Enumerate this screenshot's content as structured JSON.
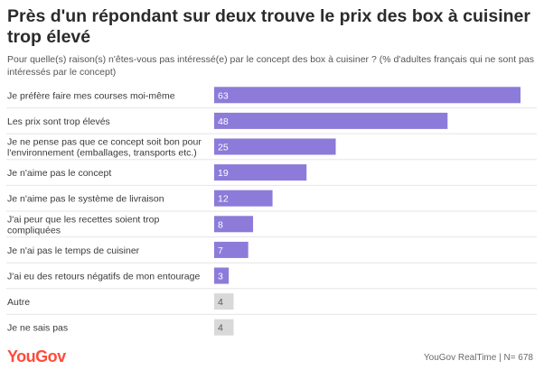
{
  "header": {
    "title": "Près d'un répondant sur deux trouve le prix des box à cuisiner trop élevé",
    "subtitle": "Pour quelle(s) raison(s) n'êtes-vous pas intéressé(e) par le concept des box à cuisiner ? (% d'adultes français qui ne sont pas intéressés par le concept)"
  },
  "footer": {
    "logo": "YouGov",
    "source": "YouGov RealTime | N= 678"
  },
  "colors": {
    "primary_bar": "#8c7bd9",
    "muted_bar": "#d9d9d9",
    "divider": "#e6e6e6"
  },
  "chart_data": {
    "type": "bar",
    "orientation": "horizontal",
    "categories": [
      [
        "Je préfère faire mes courses moi-même"
      ],
      [
        "Les prix sont trop élevés"
      ],
      [
        "Je ne pense pas que ce concept soit bon pour",
        "l'environnement (emballages, transports etc.)"
      ],
      [
        "Je n'aime pas le concept"
      ],
      [
        "Je n'aime pas le système de livraison"
      ],
      [
        "J'ai peur que les recettes soient trop",
        "compliquées"
      ],
      [
        "Je n'ai pas le temps de cuisiner"
      ],
      [
        "J'ai eu des retours négatifs de mon entourage"
      ],
      [
        "Autre"
      ],
      [
        "Je ne sais pas"
      ]
    ],
    "values": [
      63,
      48,
      25,
      19,
      12,
      8,
      7,
      3,
      4,
      4
    ],
    "muted": [
      false,
      false,
      false,
      false,
      false,
      false,
      false,
      false,
      true,
      true
    ],
    "xlim": [
      0,
      63
    ],
    "grid": false,
    "legend": "none"
  }
}
